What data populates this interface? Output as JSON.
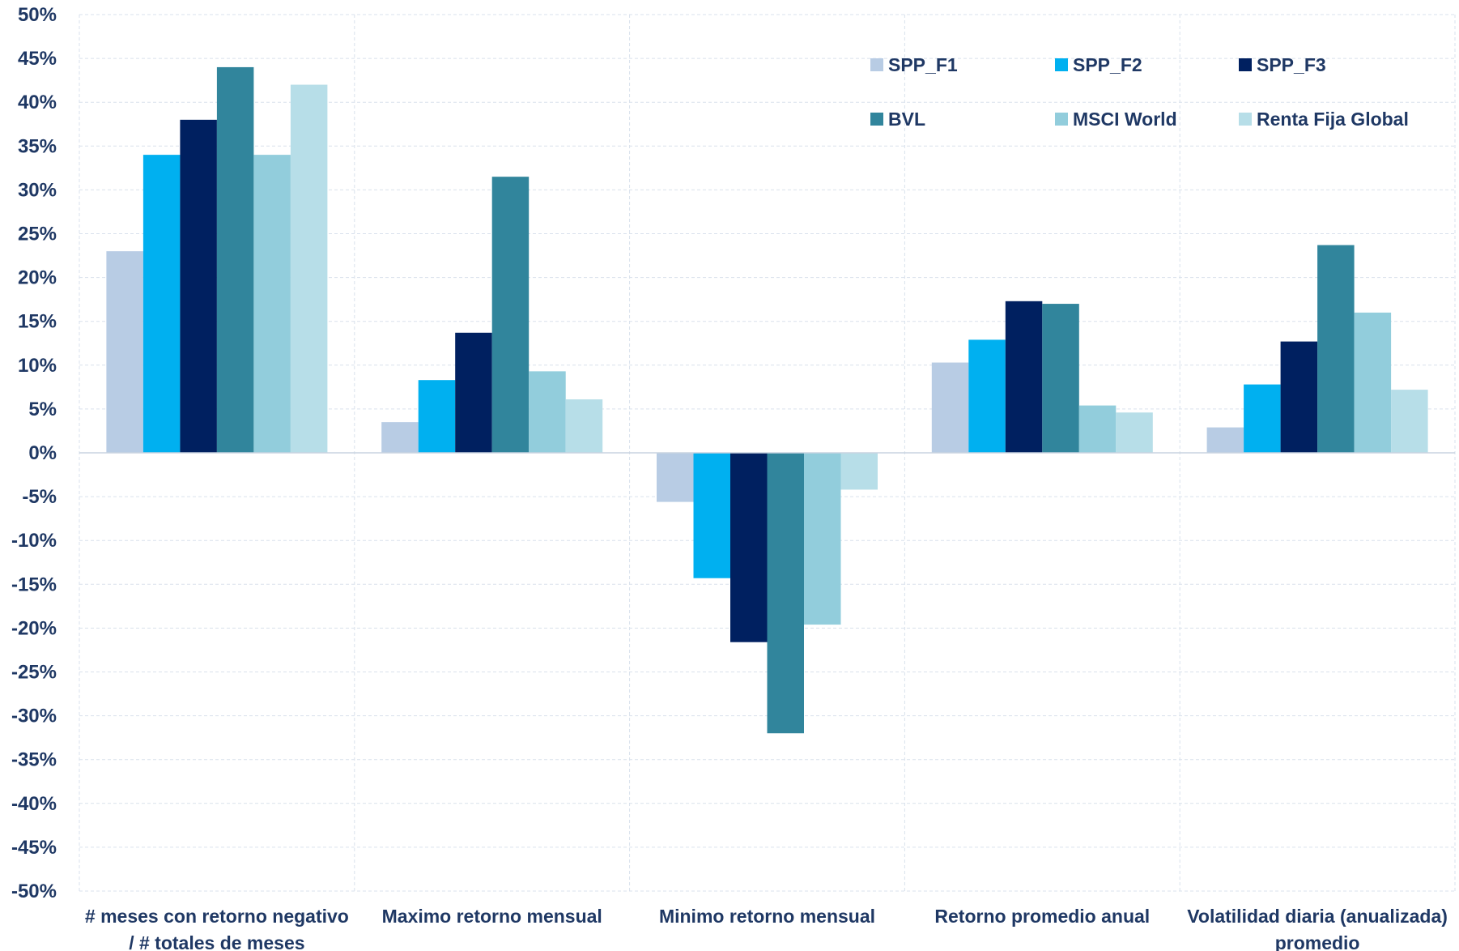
{
  "chart_data": {
    "type": "bar",
    "title": "",
    "xlabel": "",
    "ylabel": "",
    "ylim": [
      -50,
      50
    ],
    "ytick_step": 5,
    "ytick_labels": [
      "50%",
      "45%",
      "40%",
      "35%",
      "30%",
      "25%",
      "20%",
      "15%",
      "10%",
      "5%",
      "0%",
      "-5%",
      "-10%",
      "-15%",
      "-20%",
      "-25%",
      "-30%",
      "-35%",
      "-40%",
      "-45%",
      "-50%"
    ],
    "grid": true,
    "grid_style": "dashed",
    "legend_position": "top-right",
    "categories": [
      [
        "# meses con retorno negativo",
        "/ # totales de meses"
      ],
      [
        "Maximo retorno mensual"
      ],
      [
        "Minimo retorno mensual"
      ],
      [
        "Retorno promedio anual"
      ],
      [
        "Volatilidad diaria (anualizada)",
        "promedio"
      ]
    ],
    "series": [
      {
        "name": "SPP_F1",
        "color": "#b8cce4",
        "values": [
          23,
          3.5,
          -5.6,
          10.3,
          2.9
        ]
      },
      {
        "name": "SPP_F2",
        "color": "#00b0f0",
        "values": [
          34,
          8.3,
          -14.3,
          12.9,
          7.8
        ]
      },
      {
        "name": "SPP_F3",
        "color": "#002060",
        "values": [
          38,
          13.7,
          -21.6,
          17.3,
          12.7
        ]
      },
      {
        "name": "BVL",
        "color": "#31859c",
        "values": [
          44,
          31.5,
          -32,
          17,
          23.7
        ]
      },
      {
        "name": "MSCI World",
        "color": "#92cddc",
        "values": [
          34,
          9.3,
          -19.6,
          5.4,
          16
        ]
      },
      {
        "name": "Renta Fija Global",
        "color": "#b7dee8",
        "values": [
          42,
          6.1,
          -4.2,
          4.6,
          7.2
        ]
      }
    ],
    "text_color": "#1f3864",
    "grid_color": "#d9e1ec"
  }
}
